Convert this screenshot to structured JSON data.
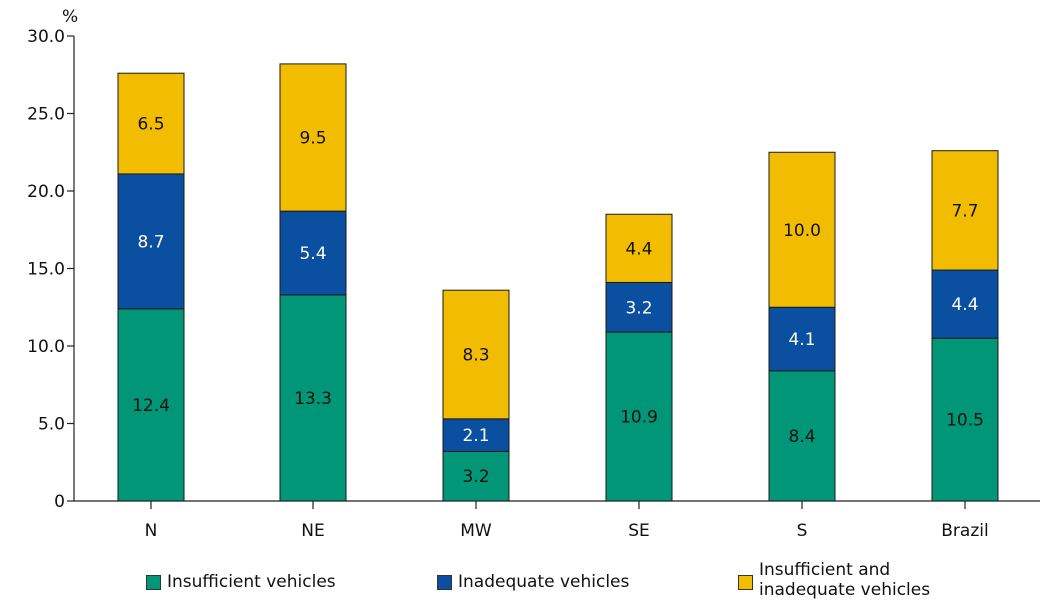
{
  "chart_data": {
    "type": "bar",
    "stacked": true,
    "unit": "%",
    "categories": [
      "N",
      "NE",
      "MW",
      "SE",
      "S",
      "Brazil"
    ],
    "yticks": [
      "0",
      "5.0",
      "10.0",
      "15.0",
      "20.0",
      "25.0",
      "30.0"
    ],
    "ylim": [
      0,
      30
    ],
    "series": [
      {
        "name": "Insufficient vehicles",
        "color": "#009677",
        "label_color": "#111111",
        "values": [
          12.4,
          13.3,
          3.2,
          10.9,
          8.4,
          10.5
        ],
        "labels": [
          "12.4",
          "13.3",
          "3.2",
          "10.9",
          "8.4",
          "10.5"
        ]
      },
      {
        "name": "Inadequate vehicles",
        "color": "#0a4fa0",
        "label_color": "#ffffff",
        "values": [
          8.7,
          5.4,
          2.1,
          3.2,
          4.1,
          4.4
        ],
        "labels": [
          "8.7",
          "5.4",
          "2.1",
          "3.2",
          "4.1",
          "4.4"
        ]
      },
      {
        "name": "Insufficient and\ninadequate vehicles",
        "color": "#f2bd00",
        "label_color": "#111111",
        "values": [
          6.5,
          9.5,
          8.3,
          4.4,
          10.0,
          7.7
        ],
        "labels": [
          "6.5",
          "9.5",
          "8.3",
          "4.4",
          "10.0",
          "7.7"
        ]
      }
    ],
    "grid": false,
    "legend_position": "bottom"
  }
}
